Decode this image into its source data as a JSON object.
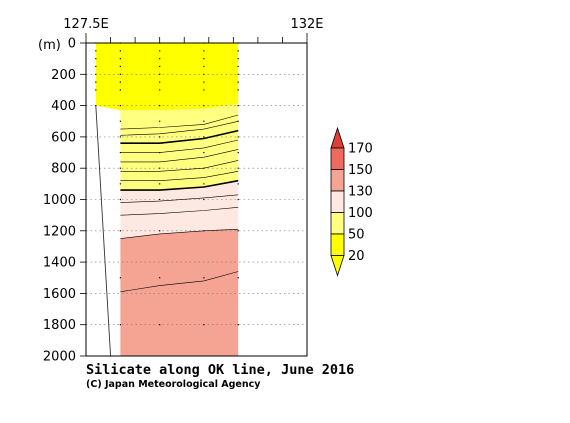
{
  "chart_data": {
    "type": "heatmap",
    "title": "Silicate along OK line, June 2016",
    "credit": "(C) Japan Meteorological Agency",
    "x_axis": {
      "range": [
        127.5,
        132.0
      ],
      "tick_labels": [
        {
          "value": 127.5,
          "label": "127.5E"
        },
        {
          "value": 132.0,
          "label": "132E"
        }
      ],
      "minor_ticks": [
        128.0,
        128.5,
        129.0,
        129.5,
        130.0,
        130.5,
        131.0,
        131.5
      ]
    },
    "y_axis": {
      "unit_label": "(m)",
      "range": [
        0,
        2000
      ],
      "inverted": true,
      "ticks": [
        0,
        200,
        400,
        600,
        800,
        1000,
        1200,
        1400,
        1600,
        1800,
        2000
      ],
      "grid": true
    },
    "colorbar": {
      "levels": [
        20,
        50,
        100,
        130,
        150,
        170
      ],
      "labels": [
        "20",
        "50",
        "100",
        "130",
        "150",
        "170"
      ],
      "colors": [
        "#ffff00",
        "#ffff80",
        "#fde9e1",
        "#f5a393",
        "#ee6a5e",
        "#e13c38"
      ]
    },
    "stations_x": [
      127.7,
      128.2,
      129.0,
      129.9,
      130.6
    ],
    "sample_depths": [
      0,
      50,
      100,
      150,
      200,
      250,
      300,
      400,
      500,
      600,
      700,
      800,
      900,
      1000,
      1200,
      1500,
      1800
    ],
    "bands": [
      {
        "range": "20-50",
        "color": "#ffff00",
        "x": [
          127.7,
          128.2,
          129.0,
          129.9,
          130.6
        ],
        "top": [
          0,
          0,
          0,
          0,
          0
        ],
        "bottom": [
          400,
          430,
          430,
          420,
          390
        ]
      },
      {
        "range": "50-100",
        "color": "#ffff80",
        "x": [
          128.2,
          129.0,
          129.9,
          130.6
        ],
        "top": [
          430,
          430,
          420,
          390
        ],
        "bottom": [
          940,
          940,
          920,
          880
        ]
      },
      {
        "range": "100-130",
        "color": "#fde9e1",
        "x": [
          128.2,
          129.0,
          129.9,
          130.6
        ],
        "top": [
          940,
          940,
          920,
          880
        ],
        "bottom": [
          1250,
          1220,
          1200,
          1190
        ]
      },
      {
        "range": "130-150",
        "color": "#f5a393",
        "x": [
          128.2,
          129.0,
          129.9,
          130.6
        ],
        "top": [
          1250,
          1220,
          1200,
          1190
        ],
        "bottom": [
          2000,
          2000,
          2000,
          2000
        ]
      }
    ],
    "contours": [
      {
        "x": [
          128.2,
          129.0,
          129.9,
          130.6
        ],
        "depth": [
          550,
          540,
          520,
          460
        ],
        "bold": false
      },
      {
        "x": [
          128.2,
          129.0,
          129.9,
          130.6
        ],
        "depth": [
          590,
          580,
          550,
          500
        ],
        "bold": false
      },
      {
        "x": [
          128.2,
          129.0,
          129.9,
          130.6
        ],
        "depth": [
          640,
          640,
          610,
          560
        ],
        "bold": true
      },
      {
        "x": [
          128.2,
          129.0,
          129.9,
          130.6
        ],
        "depth": [
          700,
          700,
          670,
          620
        ],
        "bold": false
      },
      {
        "x": [
          128.2,
          129.0,
          129.9,
          130.6
        ],
        "depth": [
          760,
          760,
          730,
          680
        ],
        "bold": false
      },
      {
        "x": [
          128.2,
          129.0,
          129.9,
          130.6
        ],
        "depth": [
          820,
          820,
          800,
          750
        ],
        "bold": false
      },
      {
        "x": [
          128.2,
          129.0,
          129.9,
          130.6
        ],
        "depth": [
          880,
          880,
          860,
          820
        ],
        "bold": false
      },
      {
        "x": [
          128.2,
          129.0,
          129.9,
          130.6
        ],
        "depth": [
          940,
          940,
          920,
          880
        ],
        "bold": true
      },
      {
        "x": [
          128.2,
          129.0,
          129.9,
          130.6
        ],
        "depth": [
          1020,
          1010,
          990,
          970
        ],
        "bold": false
      },
      {
        "x": [
          128.2,
          129.0,
          129.9,
          130.6
        ],
        "depth": [
          1100,
          1090,
          1070,
          1050
        ],
        "bold": false
      },
      {
        "x": [
          128.2,
          129.0,
          129.9,
          130.6
        ],
        "depth": [
          1250,
          1220,
          1200,
          1190
        ],
        "bold": false
      },
      {
        "x": [
          128.2,
          129.0,
          129.9,
          130.6
        ],
        "depth": [
          1590,
          1550,
          1520,
          1460
        ],
        "bold": false
      }
    ],
    "bottom_profile": {
      "x": [
        127.7,
        128.0
      ],
      "depth": [
        400,
        2000
      ]
    }
  }
}
